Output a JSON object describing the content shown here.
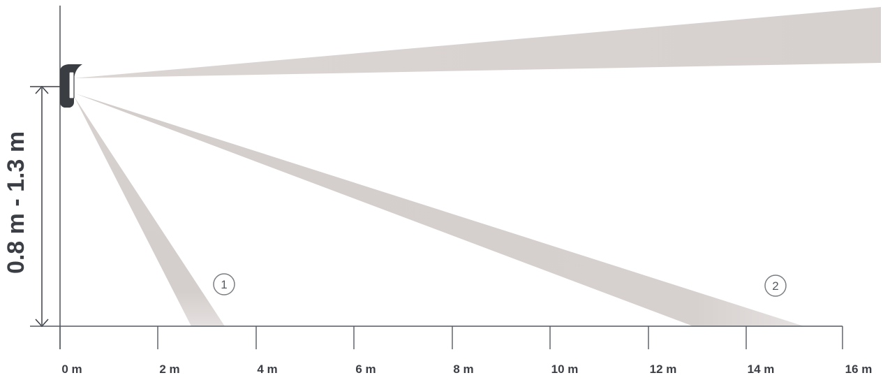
{
  "height_range_label": "0.8 m - 1.3 m",
  "x_axis": {
    "ticks": [
      "0 m",
      "2 m",
      "4 m",
      "6 m",
      "8 m",
      "10 m",
      "12 m",
      "14 m",
      "16 m"
    ]
  },
  "zones": [
    {
      "number": "1"
    },
    {
      "number": "2"
    }
  ],
  "colors": {
    "beam": "#d6d0ce",
    "beam_fade": "#e9e5e4",
    "axis": "#555a60",
    "sensor": "#3a3d42",
    "text": "#3b3f45"
  },
  "icons": [
    "motion-detector-icon"
  ]
}
